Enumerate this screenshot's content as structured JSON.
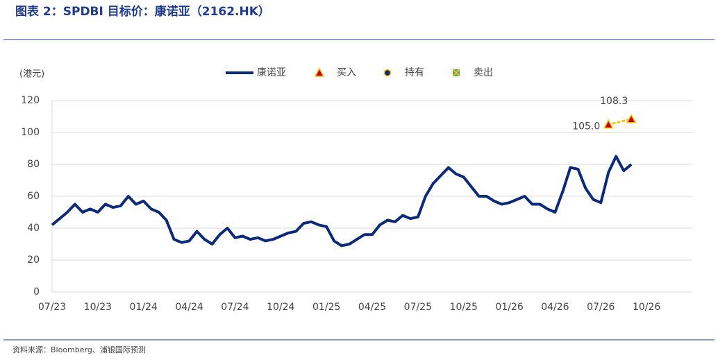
{
  "chart_data": {
    "type": "line",
    "title": "图表 2：SPDBI 目标价：康诺亚（2162.HK）",
    "y_label": "(港元)",
    "source": "资料来源：Bloomberg、浦银国际预测",
    "categories": [
      "07/23",
      null,
      null,
      null,
      null,
      null,
      "10/23",
      null,
      null,
      null,
      null,
      null,
      "01/24",
      null,
      null,
      null,
      null,
      null,
      "04/24",
      null,
      null,
      null,
      null,
      null,
      "07/24",
      null,
      null,
      null,
      null,
      null,
      "10/24",
      null,
      null,
      null,
      null,
      null,
      "01/25",
      null,
      null,
      null,
      null,
      null,
      "04/25",
      null,
      null,
      null,
      null,
      null,
      "07/25",
      null,
      null,
      null,
      null,
      null,
      "10/25",
      null,
      null,
      null,
      null,
      null,
      "01/26",
      null,
      null,
      null,
      null,
      null,
      "04/26",
      null,
      null,
      null,
      null,
      null,
      "07/26",
      null,
      null,
      null,
      null,
      null,
      "10/26",
      null,
      null,
      null,
      null,
      null,
      null
    ],
    "series": [
      {
        "name": "康诺亚",
        "color": "#0c2a7a",
        "marker": "line",
        "values": [
          42,
          46,
          50,
          55,
          50,
          52,
          50,
          55,
          53,
          54,
          60,
          55,
          57,
          52,
          50,
          45,
          33,
          31,
          32,
          38,
          33,
          30,
          36,
          40,
          34,
          35,
          33,
          34,
          32,
          33,
          35,
          37,
          38,
          43,
          44,
          42,
          41,
          32,
          29,
          30,
          33,
          36,
          36,
          42,
          45,
          44,
          48,
          46,
          47,
          60,
          68,
          73,
          78,
          74,
          72,
          66,
          60,
          60,
          57,
          55,
          56,
          58,
          60,
          55,
          55,
          52,
          50,
          63,
          78,
          77,
          65,
          58,
          56,
          75,
          85,
          76,
          80,
          null,
          null,
          null,
          null,
          null,
          null,
          null,
          null
        ]
      },
      {
        "name": "买入",
        "color": "#c00000",
        "marker": "triangle",
        "edge": "#ffc000",
        "values": [
          null,
          null,
          null,
          null,
          null,
          null,
          null,
          null,
          null,
          null,
          null,
          null,
          null,
          null,
          null,
          null,
          null,
          null,
          null,
          null,
          null,
          null,
          null,
          null,
          null,
          null,
          null,
          null,
          null,
          null,
          null,
          null,
          null,
          null,
          null,
          null,
          null,
          null,
          null,
          null,
          null,
          null,
          null,
          null,
          null,
          null,
          null,
          null,
          null,
          null,
          null,
          null,
          null,
          null,
          null,
          null,
          null,
          null,
          null,
          null,
          null,
          null,
          null,
          null,
          null,
          null,
          null,
          null,
          null,
          null,
          null,
          null,
          null,
          105.0,
          null,
          null,
          108.3,
          null,
          null,
          null,
          null,
          null,
          null,
          null,
          null
        ],
        "value_labels": [
          null,
          null,
          null,
          null,
          null,
          null,
          null,
          null,
          null,
          null,
          null,
          null,
          null,
          null,
          null,
          null,
          null,
          null,
          null,
          null,
          null,
          null,
          null,
          null,
          null,
          null,
          null,
          null,
          null,
          null,
          null,
          null,
          null,
          null,
          null,
          null,
          null,
          null,
          null,
          null,
          null,
          null,
          null,
          null,
          null,
          null,
          null,
          null,
          null,
          null,
          null,
          null,
          null,
          null,
          null,
          null,
          null,
          null,
          null,
          null,
          null,
          null,
          null,
          null,
          null,
          null,
          null,
          null,
          null,
          null,
          null,
          null,
          null,
          "105.0",
          null,
          null,
          "108.3",
          null,
          null,
          null,
          null,
          null,
          null,
          null,
          null
        ]
      },
      {
        "name": "持有",
        "color": "#0c2a7a",
        "marker": "circle",
        "edge": "#ffc000",
        "values": [
          null,
          null,
          null,
          null,
          null,
          null,
          null,
          null,
          null,
          null,
          null,
          null,
          null,
          null,
          null,
          null,
          null,
          null,
          null,
          null,
          null,
          null,
          null,
          null,
          null,
          null,
          null,
          null,
          null,
          null,
          null,
          null,
          null,
          null,
          null,
          null,
          null,
          null,
          null,
          null,
          null,
          null,
          null,
          null,
          null,
          null,
          null,
          null,
          null,
          null,
          null,
          null,
          null,
          null,
          null,
          null,
          null,
          null,
          null,
          null,
          null,
          null,
          null,
          null,
          null,
          null,
          null,
          null,
          null,
          null,
          null,
          null,
          null,
          null,
          null,
          null,
          null,
          null,
          null,
          null,
          null,
          null,
          null,
          null,
          null
        ]
      },
      {
        "name": "卖出",
        "color": "#3aa0a0",
        "marker": "xsquare",
        "edge": "#ffc000",
        "values": [
          null,
          null,
          null,
          null,
          null,
          null,
          null,
          null,
          null,
          null,
          null,
          null,
          null,
          null,
          null,
          null,
          null,
          null,
          null,
          null,
          null,
          null,
          null,
          null,
          null,
          null,
          null,
          null,
          null,
          null,
          null,
          null,
          null,
          null,
          null,
          null,
          null,
          null,
          null,
          null,
          null,
          null,
          null,
          null,
          null,
          null,
          null,
          null,
          null,
          null,
          null,
          null,
          null,
          null,
          null,
          null,
          null,
          null,
          null,
          null,
          null,
          null,
          null,
          null,
          null,
          null,
          null,
          null,
          null,
          null,
          null,
          null,
          null,
          null,
          null,
          null,
          null,
          null,
          null,
          null,
          null,
          null,
          null,
          null,
          null
        ]
      }
    ],
    "ylim": [
      0,
      120
    ],
    "yticks": [
      0,
      20,
      40,
      60,
      80,
      100,
      120
    ],
    "grid": true,
    "legend": "top"
  }
}
